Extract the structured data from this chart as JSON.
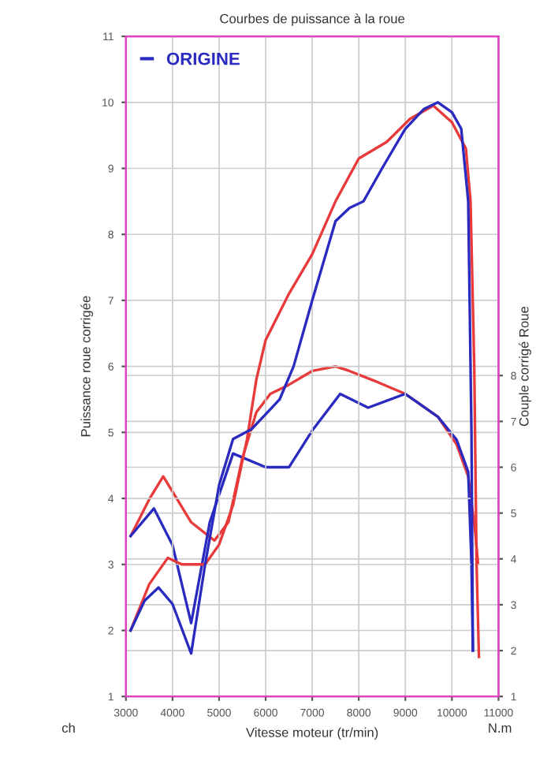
{
  "chart_data": {
    "type": "line",
    "title": "Courbes de puissance à la roue",
    "xlabel": "Vitesse moteur (tr/min)",
    "ylabel": "Puissance roue corrigée",
    "y2label": "Couple corrigé Roue",
    "annotations": [
      "ch",
      "N.m"
    ],
    "xlim": [
      3000,
      11000
    ],
    "xticks": [
      3000,
      4000,
      5000,
      6000,
      7000,
      8000,
      9000,
      10000,
      11000
    ],
    "ylim": [
      1,
      11
    ],
    "yticks": [
      1,
      2,
      3,
      4,
      5,
      6,
      7,
      8,
      9,
      10,
      11
    ],
    "y2lim": [
      1,
      15.4
    ],
    "y2ticks": [
      1,
      2,
      3,
      4,
      5,
      6,
      7,
      8
    ],
    "grid": true,
    "legend": "top left",
    "series": [
      {
        "color": "#e83a3a",
        "x": [
          3100,
          3500,
          3900,
          4200,
          4700,
          5000,
          5300,
          5600,
          5800,
          6000,
          6500,
          7000,
          7500,
          8000,
          8600,
          9100,
          9600,
          10000,
          10300,
          10400,
          10480,
          10530,
          10580
        ],
        "values": [
          2.0,
          2.7,
          3.1,
          3.0,
          3.0,
          3.3,
          3.9,
          4.9,
          5.8,
          6.4,
          7.1,
          7.7,
          8.5,
          9.15,
          9.4,
          9.75,
          9.95,
          9.7,
          9.3,
          8.5,
          6.0,
          3.0,
          1.6
        ]
      },
      {
        "name": "ORIGINE",
        "color": "#2a2ac0",
        "x": [
          3100,
          3400,
          3700,
          4000,
          4400,
          4700,
          5000,
          5300,
          5700,
          6300,
          6600,
          7000,
          7500,
          7800,
          8100,
          8500,
          9000,
          9400,
          9700,
          10000,
          10200,
          10350,
          10420,
          10450
        ],
        "values": [
          2.0,
          2.45,
          2.65,
          2.4,
          1.65,
          3.0,
          4.2,
          4.9,
          5.05,
          5.5,
          6.0,
          7.0,
          8.2,
          8.4,
          8.5,
          9.0,
          9.6,
          9.9,
          10.0,
          9.85,
          9.6,
          8.5,
          5.0,
          1.7
        ]
      },
      {
        "color": "#e83a3a",
        "axis": "y2",
        "x": [
          3100,
          3500,
          3800,
          4100,
          4400,
          4900,
          5200,
          5500,
          5800,
          6100,
          6500,
          7000,
          7500,
          7800,
          8300,
          9000,
          9700,
          10100,
          10350,
          10500,
          10560
        ],
        "values": [
          4.5,
          5.3,
          5.8,
          5.3,
          4.8,
          4.4,
          4.8,
          6.2,
          7.2,
          7.6,
          7.8,
          8.1,
          8.2,
          8.1,
          7.9,
          7.6,
          7.1,
          6.5,
          5.8,
          4.6,
          3.9
        ]
      },
      {
        "color": "#2a2ac0",
        "axis": "y2",
        "x": [
          3100,
          3600,
          4000,
          4400,
          4800,
          5300,
          6000,
          6500,
          7000,
          7600,
          8200,
          9000,
          9700,
          10100,
          10350,
          10420,
          10450
        ],
        "values": [
          4.5,
          5.1,
          4.3,
          2.6,
          4.8,
          6.3,
          6.0,
          6.0,
          6.8,
          7.6,
          7.3,
          7.6,
          7.1,
          6.6,
          5.9,
          3.9,
          2.0
        ]
      }
    ]
  }
}
